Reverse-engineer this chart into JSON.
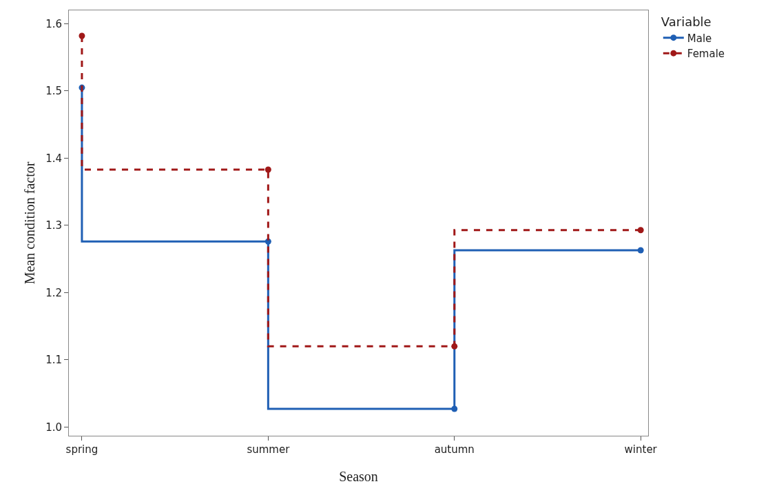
{
  "chart_data": {
    "type": "step",
    "xlabel": "Season",
    "ylabel": "Mean condition factor",
    "legend_title": "Variable",
    "categories": [
      "spring",
      "summer",
      "autumn",
      "winter"
    ],
    "series": [
      {
        "name": "Male",
        "color": "#1f5fb4",
        "values": [
          1.505,
          1.276,
          1.027,
          1.263
        ],
        "line_style": "solid"
      },
      {
        "name": "Female",
        "color": "#a01818",
        "values": [
          1.582,
          1.383,
          1.12,
          1.293
        ],
        "line_style": "dashed"
      }
    ],
    "ylim": [
      0.987,
      1.62
    ],
    "yticks": [
      {
        "value": 1.0,
        "label": "1.0"
      },
      1.1,
      1.2,
      1.3,
      1.4,
      1.5,
      1.6
    ],
    "grid": false,
    "legend": "top right",
    "marker": "circle"
  }
}
